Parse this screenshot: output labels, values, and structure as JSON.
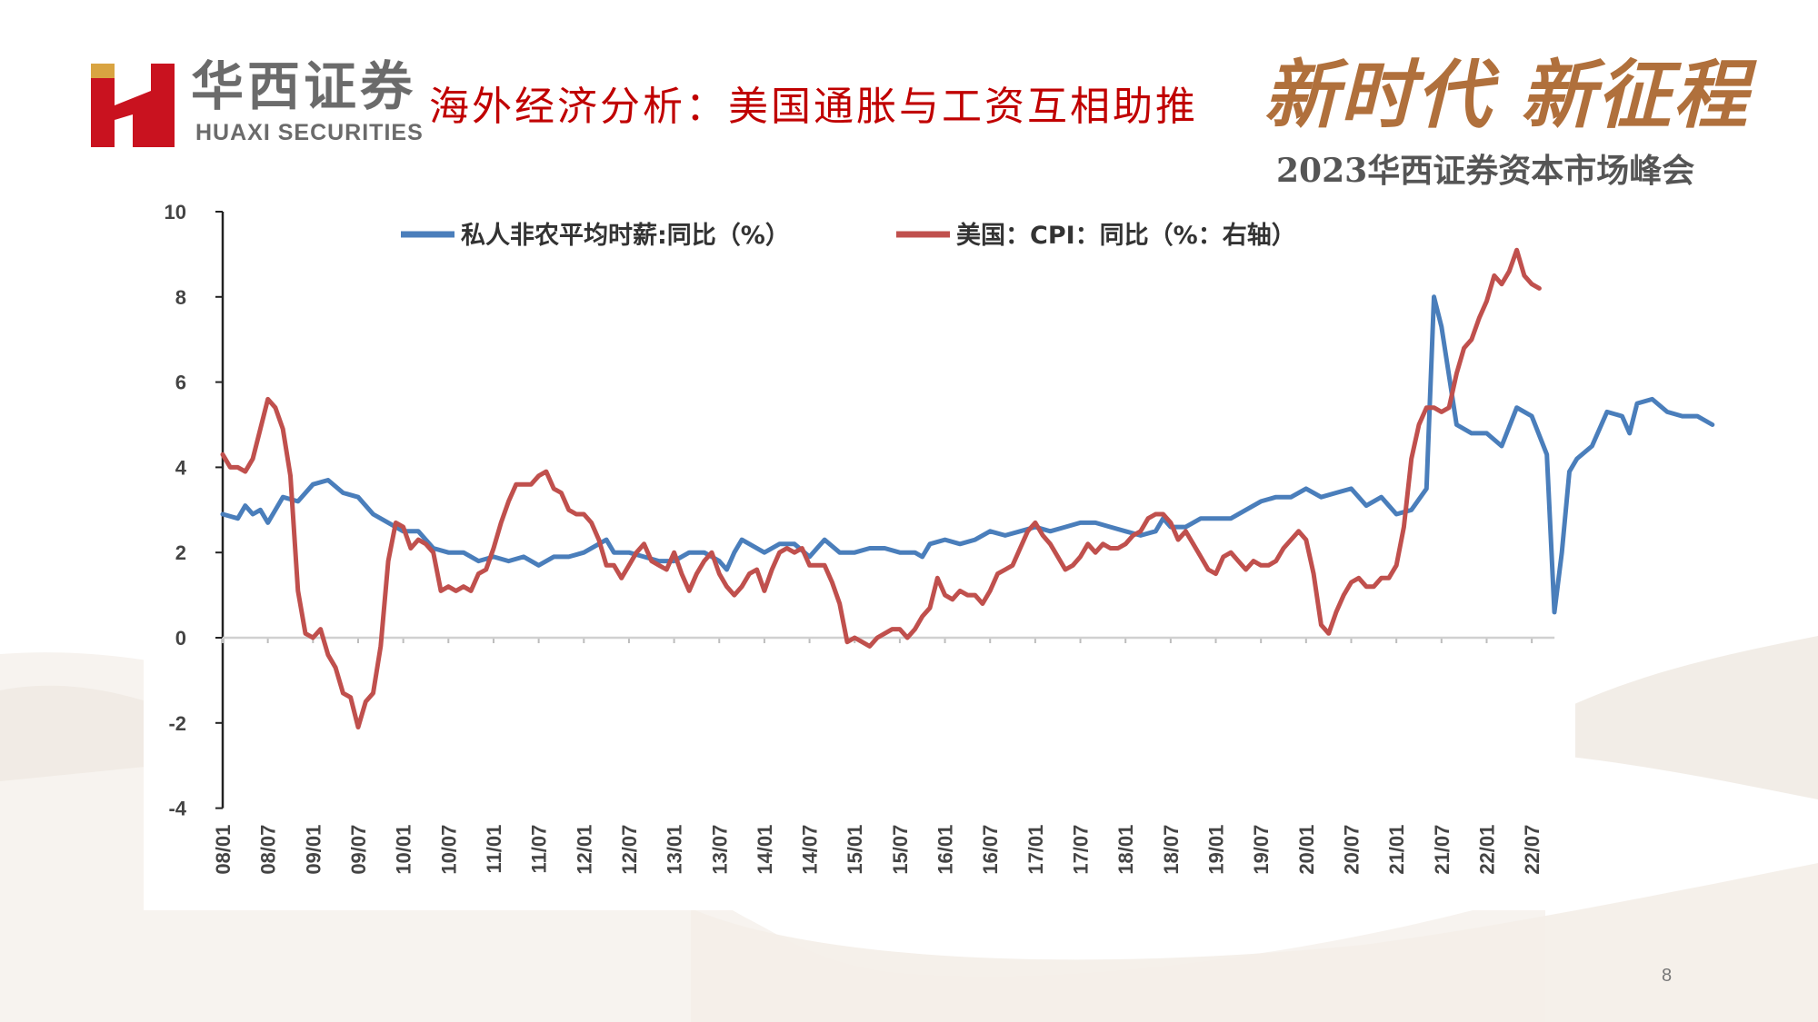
{
  "header": {
    "brand_cn": "华西证券",
    "brand_en": "HUAXI SECURITIES",
    "title": "海外经济分析：美国通胀与工资互相助推",
    "slogan": "新时代 新征程",
    "summit": "2023华西证券资本市场峰会"
  },
  "page_number": "8",
  "colors": {
    "wage": "#4a7ebb",
    "cpi": "#c0504d",
    "title": "#c00000",
    "slogan": "#b0703c"
  },
  "chart_data": {
    "type": "line",
    "ylim": [
      -4,
      10
    ],
    "yticks": [
      "-4",
      "-2",
      "0",
      "2",
      "4",
      "6",
      "8",
      "10"
    ],
    "xticks": [
      "08/01",
      "08/07",
      "09/01",
      "09/07",
      "10/01",
      "10/07",
      "11/01",
      "11/07",
      "12/01",
      "12/07",
      "13/01",
      "13/07",
      "14/01",
      "14/07",
      "15/01",
      "15/07",
      "16/01",
      "16/07",
      "17/01",
      "17/07",
      "18/01",
      "18/07",
      "19/01",
      "19/07",
      "20/01",
      "20/07",
      "21/01",
      "21/07",
      "22/01",
      "22/07"
    ],
    "legend_position": "top",
    "series": [
      {
        "name": "私人非农平均时薪:同比（%）",
        "color": "#4a7ebb",
        "points": [
          [
            0,
            2.9
          ],
          [
            2,
            2.8
          ],
          [
            3,
            3.1
          ],
          [
            4,
            2.9
          ],
          [
            5,
            3.0
          ],
          [
            6,
            2.7
          ],
          [
            8,
            3.3
          ],
          [
            10,
            3.2
          ],
          [
            12,
            3.6
          ],
          [
            14,
            3.7
          ],
          [
            16,
            3.4
          ],
          [
            18,
            3.3
          ],
          [
            20,
            2.9
          ],
          [
            22,
            2.7
          ],
          [
            24,
            2.5
          ],
          [
            26,
            2.5
          ],
          [
            28,
            2.1
          ],
          [
            30,
            2.0
          ],
          [
            32,
            2.0
          ],
          [
            34,
            1.8
          ],
          [
            36,
            1.9
          ],
          [
            38,
            1.8
          ],
          [
            40,
            1.9
          ],
          [
            42,
            1.7
          ],
          [
            44,
            1.9
          ],
          [
            46,
            1.9
          ],
          [
            48,
            2.0
          ],
          [
            50,
            2.2
          ],
          [
            51,
            2.3
          ],
          [
            52,
            2.0
          ],
          [
            54,
            2.0
          ],
          [
            56,
            1.9
          ],
          [
            58,
            1.8
          ],
          [
            60,
            1.8
          ],
          [
            62,
            2.0
          ],
          [
            64,
            2.0
          ],
          [
            66,
            1.8
          ],
          [
            67,
            1.6
          ],
          [
            68,
            2.0
          ],
          [
            69,
            2.3
          ],
          [
            70,
            2.2
          ],
          [
            72,
            2.0
          ],
          [
            74,
            2.2
          ],
          [
            76,
            2.2
          ],
          [
            78,
            1.9
          ],
          [
            80,
            2.3
          ],
          [
            82,
            2.0
          ],
          [
            84,
            2.0
          ],
          [
            86,
            2.1
          ],
          [
            88,
            2.1
          ],
          [
            90,
            2.0
          ],
          [
            92,
            2.0
          ],
          [
            93,
            1.9
          ],
          [
            94,
            2.2
          ],
          [
            96,
            2.3
          ],
          [
            98,
            2.2
          ],
          [
            100,
            2.3
          ],
          [
            102,
            2.5
          ],
          [
            104,
            2.4
          ],
          [
            106,
            2.5
          ],
          [
            108,
            2.6
          ],
          [
            110,
            2.5
          ],
          [
            112,
            2.6
          ],
          [
            114,
            2.7
          ],
          [
            116,
            2.7
          ],
          [
            118,
            2.6
          ],
          [
            120,
            2.5
          ],
          [
            122,
            2.4
          ],
          [
            124,
            2.5
          ],
          [
            125,
            2.8
          ],
          [
            126,
            2.6
          ],
          [
            128,
            2.6
          ],
          [
            130,
            2.8
          ],
          [
            132,
            2.8
          ],
          [
            134,
            2.8
          ],
          [
            136,
            3.0
          ],
          [
            138,
            3.2
          ],
          [
            140,
            3.3
          ],
          [
            142,
            3.3
          ],
          [
            144,
            3.5
          ],
          [
            146,
            3.3
          ],
          [
            148,
            3.4
          ],
          [
            150,
            3.5
          ],
          [
            152,
            3.1
          ],
          [
            154,
            3.3
          ],
          [
            156,
            2.9
          ],
          [
            158,
            3.0
          ],
          [
            160,
            3.5
          ],
          [
            161,
            8.0
          ],
          [
            162,
            7.3
          ],
          [
            164,
            5.0
          ],
          [
            166,
            4.8
          ],
          [
            168,
            4.8
          ],
          [
            170,
            4.5
          ],
          [
            172,
            5.4
          ],
          [
            174,
            5.2
          ],
          [
            176,
            4.3
          ],
          [
            177,
            0.6
          ],
          [
            178,
            2.0
          ],
          [
            179,
            3.9
          ],
          [
            180,
            4.2
          ],
          [
            182,
            4.5
          ],
          [
            184,
            5.3
          ],
          [
            186,
            5.2
          ],
          [
            187,
            4.8
          ],
          [
            188,
            5.5
          ],
          [
            190,
            5.6
          ],
          [
            192,
            5.3
          ],
          [
            194,
            5.2
          ],
          [
            196,
            5.2
          ],
          [
            198,
            5.0
          ]
        ]
      },
      {
        "name": "美国：CPI：同比（%：右轴）",
        "color": "#c0504d",
        "points": [
          [
            0,
            4.3
          ],
          [
            1,
            4.0
          ],
          [
            2,
            4.0
          ],
          [
            3,
            3.9
          ],
          [
            4,
            4.2
          ],
          [
            5,
            4.9
          ],
          [
            6,
            5.6
          ],
          [
            7,
            5.4
          ],
          [
            8,
            4.9
          ],
          [
            9,
            3.8
          ],
          [
            10,
            1.1
          ],
          [
            11,
            0.1
          ],
          [
            12,
            0.0
          ],
          [
            13,
            0.2
          ],
          [
            14,
            -0.4
          ],
          [
            15,
            -0.7
          ],
          [
            16,
            -1.3
          ],
          [
            17,
            -1.4
          ],
          [
            18,
            -2.1
          ],
          [
            19,
            -1.5
          ],
          [
            20,
            -1.3
          ],
          [
            21,
            -0.2
          ],
          [
            22,
            1.8
          ],
          [
            23,
            2.7
          ],
          [
            24,
            2.6
          ],
          [
            25,
            2.1
          ],
          [
            26,
            2.3
          ],
          [
            27,
            2.2
          ],
          [
            28,
            2.0
          ],
          [
            29,
            1.1
          ],
          [
            30,
            1.2
          ],
          [
            31,
            1.1
          ],
          [
            32,
            1.2
          ],
          [
            33,
            1.1
          ],
          [
            34,
            1.5
          ],
          [
            35,
            1.6
          ],
          [
            36,
            2.1
          ],
          [
            37,
            2.7
          ],
          [
            38,
            3.2
          ],
          [
            39,
            3.6
          ],
          [
            40,
            3.6
          ],
          [
            41,
            3.6
          ],
          [
            42,
            3.8
          ],
          [
            43,
            3.9
          ],
          [
            44,
            3.5
          ],
          [
            45,
            3.4
          ],
          [
            46,
            3.0
          ],
          [
            47,
            2.9
          ],
          [
            48,
            2.9
          ],
          [
            49,
            2.7
          ],
          [
            50,
            2.3
          ],
          [
            51,
            1.7
          ],
          [
            52,
            1.7
          ],
          [
            53,
            1.4
          ],
          [
            54,
            1.7
          ],
          [
            55,
            2.0
          ],
          [
            56,
            2.2
          ],
          [
            57,
            1.8
          ],
          [
            58,
            1.7
          ],
          [
            59,
            1.6
          ],
          [
            60,
            2.0
          ],
          [
            61,
            1.5
          ],
          [
            62,
            1.1
          ],
          [
            63,
            1.5
          ],
          [
            64,
            1.8
          ],
          [
            65,
            2.0
          ],
          [
            66,
            1.5
          ],
          [
            67,
            1.2
          ],
          [
            68,
            1.0
          ],
          [
            69,
            1.2
          ],
          [
            70,
            1.5
          ],
          [
            71,
            1.6
          ],
          [
            72,
            1.1
          ],
          [
            73,
            1.6
          ],
          [
            74,
            2.0
          ],
          [
            75,
            2.1
          ],
          [
            76,
            2.0
          ],
          [
            77,
            2.1
          ],
          [
            78,
            1.7
          ],
          [
            79,
            1.7
          ],
          [
            80,
            1.7
          ],
          [
            81,
            1.3
          ],
          [
            82,
            0.8
          ],
          [
            83,
            -0.1
          ],
          [
            84,
            0.0
          ],
          [
            85,
            -0.1
          ],
          [
            86,
            -0.2
          ],
          [
            87,
            0.0
          ],
          [
            88,
            0.1
          ],
          [
            89,
            0.2
          ],
          [
            90,
            0.2
          ],
          [
            91,
            0.0
          ],
          [
            92,
            0.2
          ],
          [
            93,
            0.5
          ],
          [
            94,
            0.7
          ],
          [
            95,
            1.4
          ],
          [
            96,
            1.0
          ],
          [
            97,
            0.9
          ],
          [
            98,
            1.1
          ],
          [
            99,
            1.0
          ],
          [
            100,
            1.0
          ],
          [
            101,
            0.8
          ],
          [
            102,
            1.1
          ],
          [
            103,
            1.5
          ],
          [
            104,
            1.6
          ],
          [
            105,
            1.7
          ],
          [
            106,
            2.1
          ],
          [
            107,
            2.5
          ],
          [
            108,
            2.7
          ],
          [
            109,
            2.4
          ],
          [
            110,
            2.2
          ],
          [
            111,
            1.9
          ],
          [
            112,
            1.6
          ],
          [
            113,
            1.7
          ],
          [
            114,
            1.9
          ],
          [
            115,
            2.2
          ],
          [
            116,
            2.0
          ],
          [
            117,
            2.2
          ],
          [
            118,
            2.1
          ],
          [
            119,
            2.1
          ],
          [
            120,
            2.2
          ],
          [
            121,
            2.4
          ],
          [
            122,
            2.5
          ],
          [
            123,
            2.8
          ],
          [
            124,
            2.9
          ],
          [
            125,
            2.9
          ],
          [
            126,
            2.7
          ],
          [
            127,
            2.3
          ],
          [
            128,
            2.5
          ],
          [
            129,
            2.2
          ],
          [
            130,
            1.9
          ],
          [
            131,
            1.6
          ],
          [
            132,
            1.5
          ],
          [
            133,
            1.9
          ],
          [
            134,
            2.0
          ],
          [
            135,
            1.8
          ],
          [
            136,
            1.6
          ],
          [
            137,
            1.8
          ],
          [
            138,
            1.7
          ],
          [
            139,
            1.7
          ],
          [
            140,
            1.8
          ],
          [
            141,
            2.1
          ],
          [
            142,
            2.3
          ],
          [
            143,
            2.5
          ],
          [
            144,
            2.3
          ],
          [
            145,
            1.5
          ],
          [
            146,
            0.3
          ],
          [
            147,
            0.1
          ],
          [
            148,
            0.6
          ],
          [
            149,
            1.0
          ],
          [
            150,
            1.3
          ],
          [
            151,
            1.4
          ],
          [
            152,
            1.2
          ],
          [
            153,
            1.2
          ],
          [
            154,
            1.4
          ],
          [
            155,
            1.4
          ],
          [
            156,
            1.7
          ],
          [
            157,
            2.6
          ],
          [
            158,
            4.2
          ],
          [
            159,
            5.0
          ],
          [
            160,
            5.4
          ],
          [
            161,
            5.4
          ],
          [
            162,
            5.3
          ],
          [
            163,
            5.4
          ],
          [
            164,
            6.2
          ],
          [
            165,
            6.8
          ],
          [
            166,
            7.0
          ],
          [
            167,
            7.5
          ],
          [
            168,
            7.9
          ],
          [
            169,
            8.5
          ],
          [
            170,
            8.3
          ],
          [
            171,
            8.6
          ],
          [
            172,
            9.1
          ],
          [
            173,
            8.5
          ],
          [
            174,
            8.3
          ],
          [
            175,
            8.2
          ]
        ]
      }
    ]
  }
}
